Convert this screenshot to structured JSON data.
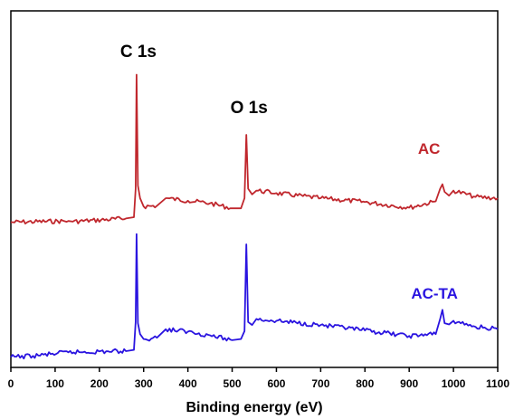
{
  "chart_data": {
    "type": "line",
    "title": "",
    "xlabel": "Binding energy (eV)",
    "ylabel": "",
    "xlim": [
      0,
      1100
    ],
    "x_ticks": [
      "0",
      "100",
      "200",
      "300",
      "400",
      "500",
      "600",
      "700",
      "800",
      "900",
      "1000",
      "1100"
    ],
    "y_ticks_shown": false,
    "grid": false,
    "legend": "none",
    "annotations": [
      {
        "text": "C 1s",
        "x": 284
      },
      {
        "text": "O 1s",
        "x": 532
      }
    ],
    "series": [
      {
        "name": "AC",
        "color": "#c0272d",
        "x": [
          0,
          130,
          140,
          260,
          278,
          282,
          284,
          287,
          292,
          300,
          330,
          350,
          400,
          450,
          500,
          520,
          528,
          532,
          536,
          545,
          555,
          600,
          700,
          800,
          900,
          960,
          970,
          975,
          980,
          990,
          1000,
          1050,
          1100
        ],
        "y": [
          0.02,
          0.04,
          0.03,
          0.08,
          0.1,
          0.55,
          2.35,
          0.6,
          0.4,
          0.27,
          0.28,
          0.4,
          0.36,
          0.32,
          0.24,
          0.24,
          0.4,
          1.4,
          0.55,
          0.46,
          0.52,
          0.48,
          0.4,
          0.34,
          0.25,
          0.35,
          0.55,
          0.62,
          0.5,
          0.44,
          0.52,
          0.42,
          0.4
        ]
      },
      {
        "name": "AC-TA",
        "color": "#2a14e0",
        "x": [
          0,
          50,
          130,
          260,
          278,
          282,
          284,
          287,
          292,
          300,
          330,
          350,
          400,
          450,
          500,
          520,
          528,
          532,
          536,
          545,
          555,
          600,
          700,
          800,
          900,
          960,
          970,
          975,
          980,
          990,
          1000,
          1050,
          1100
        ],
        "y": [
          0.02,
          0.04,
          0.1,
          0.12,
          0.14,
          0.6,
          2.05,
          0.58,
          0.4,
          0.32,
          0.34,
          0.48,
          0.44,
          0.38,
          0.3,
          0.32,
          0.45,
          1.88,
          0.6,
          0.55,
          0.65,
          0.62,
          0.55,
          0.46,
          0.37,
          0.4,
          0.65,
          0.8,
          0.58,
          0.56,
          0.62,
          0.52,
          0.48
        ]
      }
    ]
  }
}
